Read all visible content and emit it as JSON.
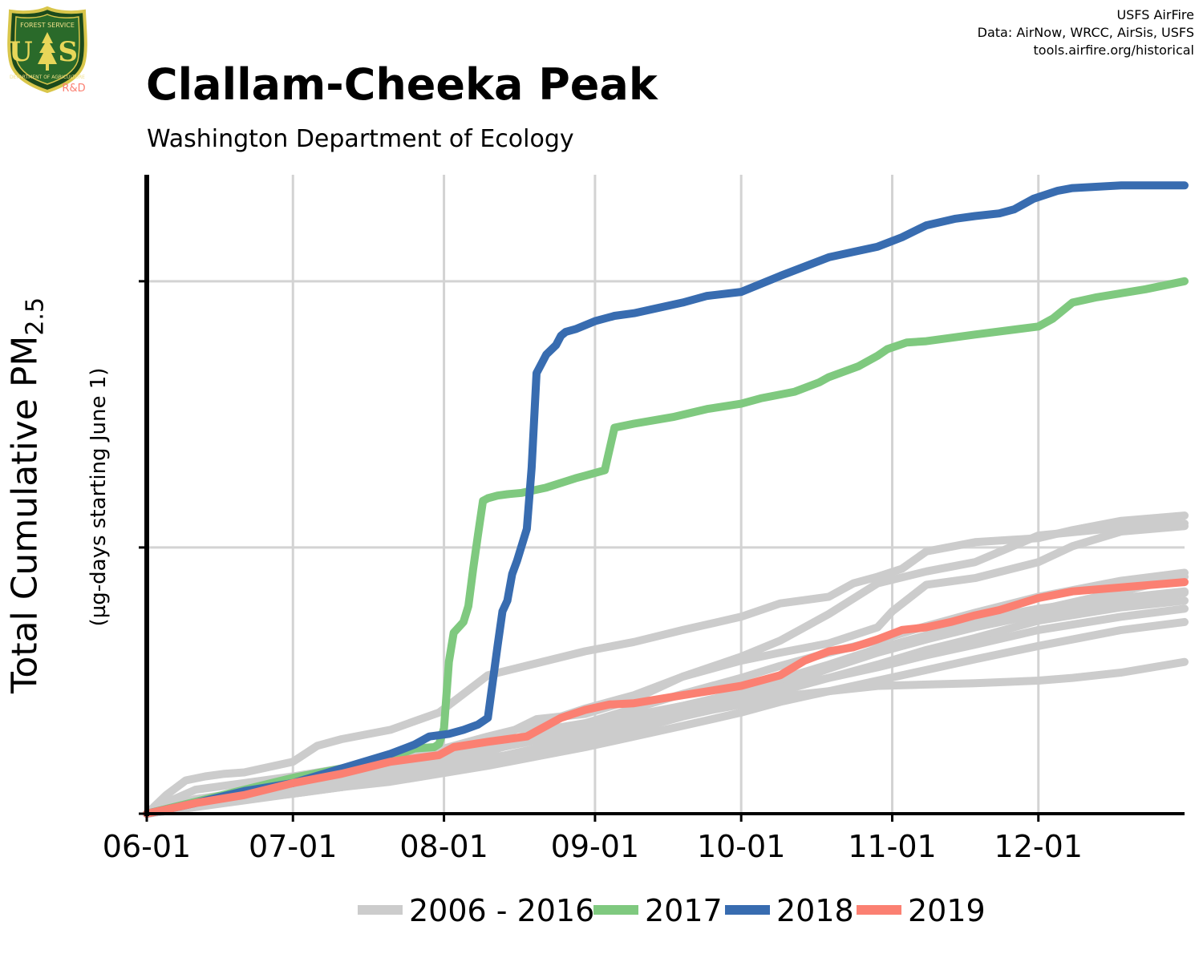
{
  "header": {
    "title": "Clallam-Cheeka Peak",
    "subtitle": "Washington Department of Ecology",
    "credits": [
      "USFS AirFire",
      "Data: AirNow, WRCC, AirSis, USFS",
      "tools.airfire.org/historical"
    ],
    "logo": {
      "top_text": "FOREST SERVICE",
      "bottom_text": "DEPARTMENT OF AGRICULTURE",
      "letters": "U S",
      "badge": "R&D"
    }
  },
  "chart_data": {
    "type": "line",
    "ylabel_main": "Total Cumulative PM",
    "ylabel_sub_script": "2.5",
    "ylabel_units": "(µg-days starting June 1)",
    "x_tick_labels": [
      "06-01",
      "07-01",
      "08-01",
      "09-01",
      "10-01",
      "11-01",
      "12-01"
    ],
    "x_tick_days": [
      0,
      30,
      61,
      92,
      122,
      153,
      183
    ],
    "xlim": [
      0,
      213
    ],
    "y_tick_labels": [
      "",
      "",
      ""
    ],
    "ylim": [
      0,
      2400
    ],
    "y_gridlines": [
      1000,
      2000
    ],
    "grid": true,
    "legend_position": "bottom",
    "colors": {
      "historical": "#cccccc",
      "2017": "#7fc97f",
      "2018": "#386cb0",
      "2019": "#fb8072"
    },
    "series": [
      {
        "name": "2006 - 2016",
        "key": "historical",
        "group": true,
        "lines": [
          {
            "x": [
              0,
              4,
              8,
              12,
              16,
              20,
              30,
              35,
              40,
              50,
              60,
              65,
              70,
              80,
              90,
              100,
              110,
              122,
              130,
              140,
              145,
              150,
              155,
              160,
              170,
              183,
              190,
              200,
              213
            ],
            "y": [
              0,
              70,
              125,
              140,
              150,
              155,
              195,
              255,
              280,
              315,
              380,
              450,
              520,
              565,
              610,
              645,
              690,
              740,
              790,
              815,
              865,
              890,
              920,
              985,
              1020,
              1035,
              1065,
              1100,
              1120
            ]
          },
          {
            "x": [
              0,
              5,
              10,
              20,
              30,
              40,
              50,
              60,
              70,
              80,
              90,
              100,
              110,
              122,
              130,
              140,
              150,
              160,
              170,
              183,
              200,
              213
            ],
            "y": [
              0,
              50,
              90,
              115,
              140,
              170,
              215,
              240,
              290,
              335,
              395,
              445,
              515,
              590,
              650,
              750,
              865,
              910,
              945,
              1045,
              1075,
              1090
            ]
          },
          {
            "x": [
              0,
              10,
              20,
              30,
              40,
              50,
              60,
              70,
              80,
              90,
              100,
              110,
              122,
              130,
              140,
              150,
              153,
              160,
              170,
              183,
              190,
              200,
              213
            ],
            "y": [
              0,
              55,
              80,
              110,
              140,
              195,
              240,
              265,
              355,
              375,
              430,
              515,
              575,
              605,
              640,
              700,
              760,
              860,
              885,
              945,
              1005,
              1060,
              1080
            ]
          },
          {
            "x": [
              0,
              10,
              20,
              30,
              40,
              50,
              60,
              70,
              80,
              90,
              100,
              110,
              122,
              130,
              140,
              150,
              160,
              170,
              183,
              200,
              213
            ],
            "y": [
              0,
              40,
              75,
              110,
              130,
              160,
              200,
              245,
              310,
              340,
              395,
              450,
              510,
              555,
              605,
              650,
              705,
              755,
              815,
              875,
              905
            ]
          },
          {
            "x": [
              0,
              10,
              20,
              30,
              40,
              50,
              60,
              70,
              80,
              90,
              100,
              110,
              122,
              130,
              140,
              150,
              160,
              170,
              183,
              200,
              213
            ],
            "y": [
              0,
              30,
              60,
              90,
              110,
              130,
              165,
              205,
              245,
              275,
              335,
              380,
              435,
              480,
              545,
              605,
              655,
              700,
              750,
              800,
              830
            ]
          },
          {
            "x": [
              0,
              10,
              20,
              30,
              40,
              50,
              60,
              70,
              80,
              90,
              100,
              110,
              122,
              130,
              140,
              150,
              160,
              170,
              183,
              200,
              213
            ],
            "y": [
              0,
              25,
              55,
              75,
              100,
              130,
              170,
              210,
              235,
              270,
              315,
              365,
              415,
              460,
              510,
              560,
              615,
              660,
              725,
              775,
              800
            ]
          },
          {
            "x": [
              0,
              10,
              20,
              30,
              40,
              50,
              60,
              70,
              80,
              90,
              100,
              110,
              122,
              130,
              140,
              150,
              160,
              170,
              183,
              200,
              213
            ],
            "y": [
              0,
              30,
              65,
              95,
              125,
              155,
              195,
              235,
              285,
              325,
              365,
              405,
              455,
              505,
              560,
              620,
              670,
              725,
              770,
              810,
              835
            ]
          },
          {
            "x": [
              0,
              10,
              20,
              30,
              40,
              50,
              60,
              70,
              80,
              90,
              100,
              110,
              122,
              130,
              140,
              150,
              160,
              170,
              183,
              200,
              213
            ],
            "y": [
              0,
              35,
              70,
              105,
              140,
              175,
              215,
              250,
              290,
              330,
              370,
              405,
              455,
              505,
              555,
              605,
              655,
              705,
              765,
              835,
              890
            ]
          },
          {
            "x": [
              0,
              10,
              20,
              30,
              40,
              50,
              60,
              70,
              80,
              90,
              100,
              110,
              122,
              130,
              140,
              150,
              160,
              170,
              183,
              200,
              213
            ],
            "y": [
              0,
              30,
              60,
              85,
              110,
              150,
              195,
              240,
              275,
              305,
              345,
              385,
              430,
              470,
              510,
              550,
              595,
              635,
              690,
              740,
              770
            ]
          },
          {
            "x": [
              0,
              10,
              20,
              30,
              40,
              50,
              60,
              70,
              80,
              90,
              100,
              110,
              122,
              130,
              140,
              150,
              160,
              170,
              183,
              200,
              213
            ],
            "y": [
              0,
              30,
              55,
              80,
              100,
              120,
              150,
              180,
              215,
              250,
              290,
              330,
              380,
              420,
              460,
              500,
              540,
              580,
              630,
              690,
              720
            ]
          },
          {
            "x": [
              0,
              10,
              20,
              30,
              40,
              50,
              60,
              70,
              80,
              90,
              100,
              110,
              122,
              130,
              140,
              150,
              160,
              170,
              183,
              190,
              200,
              213
            ],
            "y": [
              0,
              25,
              50,
              75,
              100,
              130,
              160,
              200,
              245,
              290,
              330,
              370,
              410,
              440,
              460,
              480,
              485,
              490,
              500,
              510,
              530,
              570
            ]
          }
        ]
      },
      {
        "name": "2017",
        "key": "2017",
        "x": [
          0,
          10,
          20,
          30,
          40,
          50,
          55,
          59,
          60,
          61,
          62,
          63,
          65,
          66,
          67,
          68,
          69,
          70,
          72,
          74,
          77,
          82,
          88,
          90,
          94,
          96,
          100,
          108,
          115,
          122,
          126,
          133,
          138,
          140,
          146,
          150,
          152,
          156,
          160,
          170,
          183,
          186,
          190,
          195,
          205,
          213
        ],
        "y": [
          0,
          45,
          90,
          135,
          170,
          210,
          245,
          250,
          262,
          320,
          570,
          680,
          720,
          780,
          920,
          1050,
          1175,
          1185,
          1195,
          1200,
          1205,
          1225,
          1260,
          1270,
          1290,
          1450,
          1465,
          1490,
          1520,
          1540,
          1560,
          1585,
          1620,
          1640,
          1680,
          1720,
          1745,
          1770,
          1775,
          1800,
          1830,
          1860,
          1920,
          1940,
          1970,
          2000
        ]
      },
      {
        "name": "2018",
        "key": "2018",
        "x": [
          0,
          10,
          20,
          30,
          40,
          50,
          55,
          58,
          62,
          65,
          68,
          70,
          72,
          73,
          74,
          75,
          76,
          78,
          79,
          80,
          82,
          84,
          85,
          86,
          88,
          92,
          96,
          100,
          110,
          115,
          122,
          130,
          140,
          145,
          150,
          155,
          160,
          166,
          170,
          175,
          178,
          182,
          187,
          190,
          200,
          213
        ],
        "y": [
          0,
          40,
          85,
          115,
          170,
          225,
          260,
          290,
          300,
          315,
          335,
          360,
          630,
          760,
          800,
          900,
          950,
          1070,
          1300,
          1655,
          1725,
          1760,
          1795,
          1810,
          1820,
          1850,
          1870,
          1880,
          1920,
          1945,
          1960,
          2020,
          2090,
          2110,
          2130,
          2165,
          2210,
          2235,
          2245,
          2255,
          2270,
          2310,
          2340,
          2350,
          2360,
          2360
        ]
      },
      {
        "name": "2019",
        "key": "2019",
        "x": [
          0,
          10,
          20,
          30,
          40,
          50,
          60,
          63,
          70,
          78,
          85,
          90,
          95,
          100,
          110,
          122,
          130,
          135,
          140,
          145,
          150,
          155,
          160,
          165,
          170,
          175,
          183,
          190,
          200,
          213
        ],
        "y": [
          0,
          40,
          70,
          115,
          150,
          195,
          220,
          250,
          270,
          290,
          360,
          390,
          410,
          415,
          445,
          480,
          520,
          575,
          610,
          625,
          655,
          690,
          700,
          720,
          745,
          765,
          810,
          835,
          850,
          870
        ]
      }
    ],
    "legend": [
      {
        "label": "2006 - 2016",
        "key": "historical"
      },
      {
        "label": "2017",
        "key": "2017"
      },
      {
        "label": "2018",
        "key": "2018"
      },
      {
        "label": "2019",
        "key": "2019"
      }
    ]
  }
}
